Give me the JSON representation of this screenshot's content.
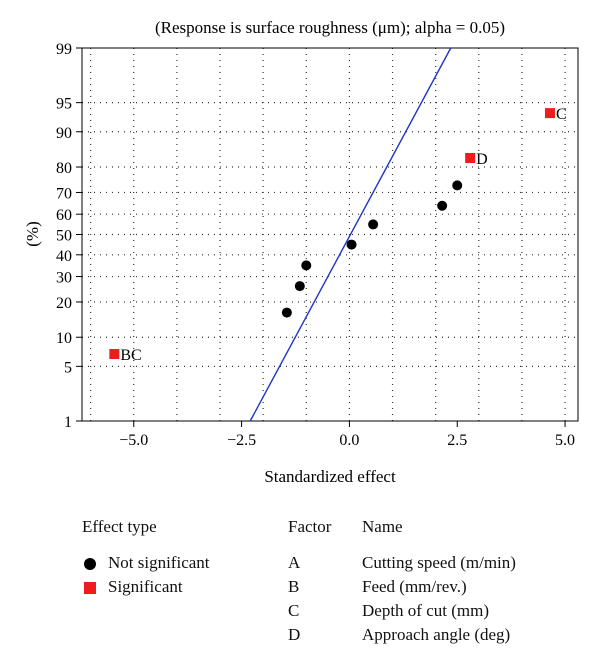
{
  "chart_data": {
    "type": "scatter",
    "title": "(Response is surface roughness (μm); alpha = 0.05)",
    "xlabel": "Standardized effect",
    "ylabel": "(%)",
    "xlim": [
      -6.2,
      5.3
    ],
    "ylim": [
      1,
      99
    ],
    "y_scale": "normal-probability",
    "grid": true,
    "x_ticks": [
      "-5.0",
      "-2.5",
      "0.0",
      "2.5",
      "5.0"
    ],
    "y_ticks": [
      "1",
      "5",
      "10",
      "20",
      "30",
      "40",
      "50",
      "60",
      "70",
      "80",
      "90",
      "95",
      "99"
    ],
    "reference_line": {
      "x": [
        -2.3,
        2.35
      ],
      "y": [
        1,
        99
      ],
      "color": "#1f35c8"
    },
    "series": [
      {
        "name": "Not significant",
        "marker": "circle",
        "color": "#000000",
        "points": [
          {
            "x": -1.45,
            "y": 16.5
          },
          {
            "x": -1.15,
            "y": 26
          },
          {
            "x": -1.0,
            "y": 35
          },
          {
            "x": 0.05,
            "y": 45
          },
          {
            "x": 0.55,
            "y": 55
          },
          {
            "x": 2.15,
            "y": 64
          },
          {
            "x": 2.5,
            "y": 73
          }
        ]
      },
      {
        "name": "Significant",
        "marker": "square",
        "color": "#ee1c1c",
        "points": [
          {
            "x": -5.45,
            "y": 6.8,
            "label": "BC"
          },
          {
            "x": 2.8,
            "y": 83,
            "label": "D"
          },
          {
            "x": 4.65,
            "y": 93.5,
            "label": "C"
          }
        ]
      }
    ]
  },
  "legend": {
    "effect_header": "Effect type",
    "not_significant": "Not significant",
    "significant": "Significant",
    "factor_header": "Factor",
    "name_header": "Name",
    "factors": [
      {
        "key": "A",
        "name": "Cutting speed (m/min)"
      },
      {
        "key": "B",
        "name": "Feed (mm/rev.)"
      },
      {
        "key": "C",
        "name": "Depth of cut (mm)"
      },
      {
        "key": "D",
        "name": "Approach angle (deg)"
      }
    ]
  }
}
